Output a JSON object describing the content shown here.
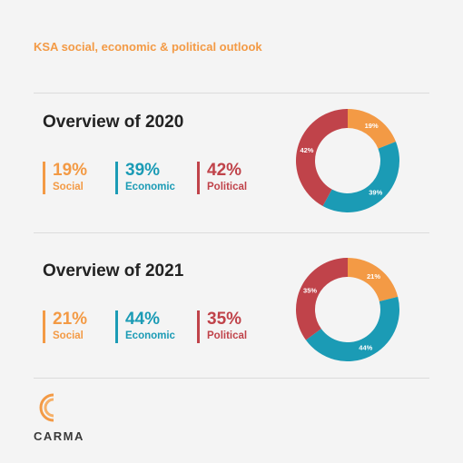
{
  "header": {
    "title": "KSA social, economic & political outlook"
  },
  "brand": {
    "name": "CARMA",
    "logo_icon": "carma-c-logo-icon"
  },
  "colors": {
    "social": "#f39a45",
    "economic": "#1b9bb5",
    "political": "#c0434a"
  },
  "chart_data": [
    {
      "type": "pie",
      "title": "Overview of 2020",
      "categories": [
        "Social",
        "Economic",
        "Political"
      ],
      "values": [
        19,
        39,
        42
      ],
      "labels": [
        "19%",
        "39%",
        "42%"
      ],
      "slice_labels": [
        "19%",
        "39%",
        "42%"
      ]
    },
    {
      "type": "pie",
      "title": "Overview of 2021",
      "categories": [
        "Social",
        "Economic",
        "Political"
      ],
      "values": [
        21,
        44,
        35
      ],
      "labels": [
        "21%",
        "44%",
        "35%"
      ],
      "slice_labels": [
        "21%",
        "44%",
        "35%"
      ]
    }
  ]
}
